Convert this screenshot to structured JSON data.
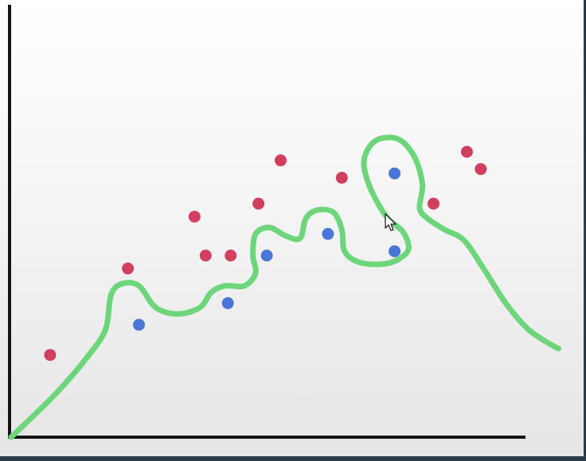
{
  "chart_data": {
    "type": "scatter",
    "title": "",
    "xlabel": "",
    "ylabel": "",
    "xlim": [
      0,
      100
    ],
    "ylim": [
      0,
      100
    ],
    "grid": false,
    "series": [
      {
        "color": "#d23f5e",
        "points": [
          [
            7,
            19
          ],
          [
            21,
            39
          ],
          [
            33,
            51
          ],
          [
            35,
            42
          ],
          [
            39.5,
            42
          ],
          [
            44.5,
            54
          ],
          [
            48.5,
            64
          ],
          [
            59.5,
            60
          ],
          [
            76,
            54
          ],
          [
            82,
            66
          ],
          [
            84.5,
            62
          ]
        ]
      },
      {
        "color": "#4a76d8",
        "points": [
          [
            23,
            26
          ],
          [
            39,
            31
          ],
          [
            46,
            42
          ],
          [
            57,
            47
          ],
          [
            69,
            61
          ],
          [
            69,
            43
          ]
        ]
      }
    ],
    "decision_boundary": {
      "color": "#6ed67a",
      "points": [
        [
          0,
          0
        ],
        [
          8,
          10
        ],
        [
          14,
          19
        ],
        [
          17,
          25
        ],
        [
          18,
          33
        ],
        [
          20,
          35.5
        ],
        [
          23,
          35
        ],
        [
          26,
          30
        ],
        [
          30,
          28.5
        ],
        [
          34,
          30
        ],
        [
          36,
          33.5
        ],
        [
          38.5,
          35
        ],
        [
          42,
          35
        ],
        [
          44,
          38
        ],
        [
          43.5,
          42
        ],
        [
          44,
          47
        ],
        [
          46.5,
          48.5
        ],
        [
          49.5,
          46.5
        ],
        [
          52,
          46
        ],
        [
          53,
          50.5
        ],
        [
          55,
          52.5
        ],
        [
          58,
          52
        ],
        [
          59.5,
          48
        ],
        [
          60,
          43
        ],
        [
          62.5,
          40.5
        ],
        [
          66.5,
          40
        ],
        [
          69.5,
          41
        ],
        [
          71.5,
          43.5
        ],
        [
          70.5,
          47.5
        ],
        [
          67.5,
          51
        ],
        [
          64.5,
          58
        ],
        [
          63.5,
          64
        ],
        [
          65.5,
          68.5
        ],
        [
          69.5,
          69
        ],
        [
          72.5,
          65
        ],
        [
          74,
          58.5
        ],
        [
          73.5,
          53
        ],
        [
          75,
          50.5
        ],
        [
          78,
          48
        ],
        [
          81.5,
          45.5
        ],
        [
          85,
          39
        ],
        [
          89,
          31
        ],
        [
          93,
          25
        ],
        [
          97,
          21.5
        ],
        [
          98.5,
          20.5
        ]
      ]
    }
  }
}
